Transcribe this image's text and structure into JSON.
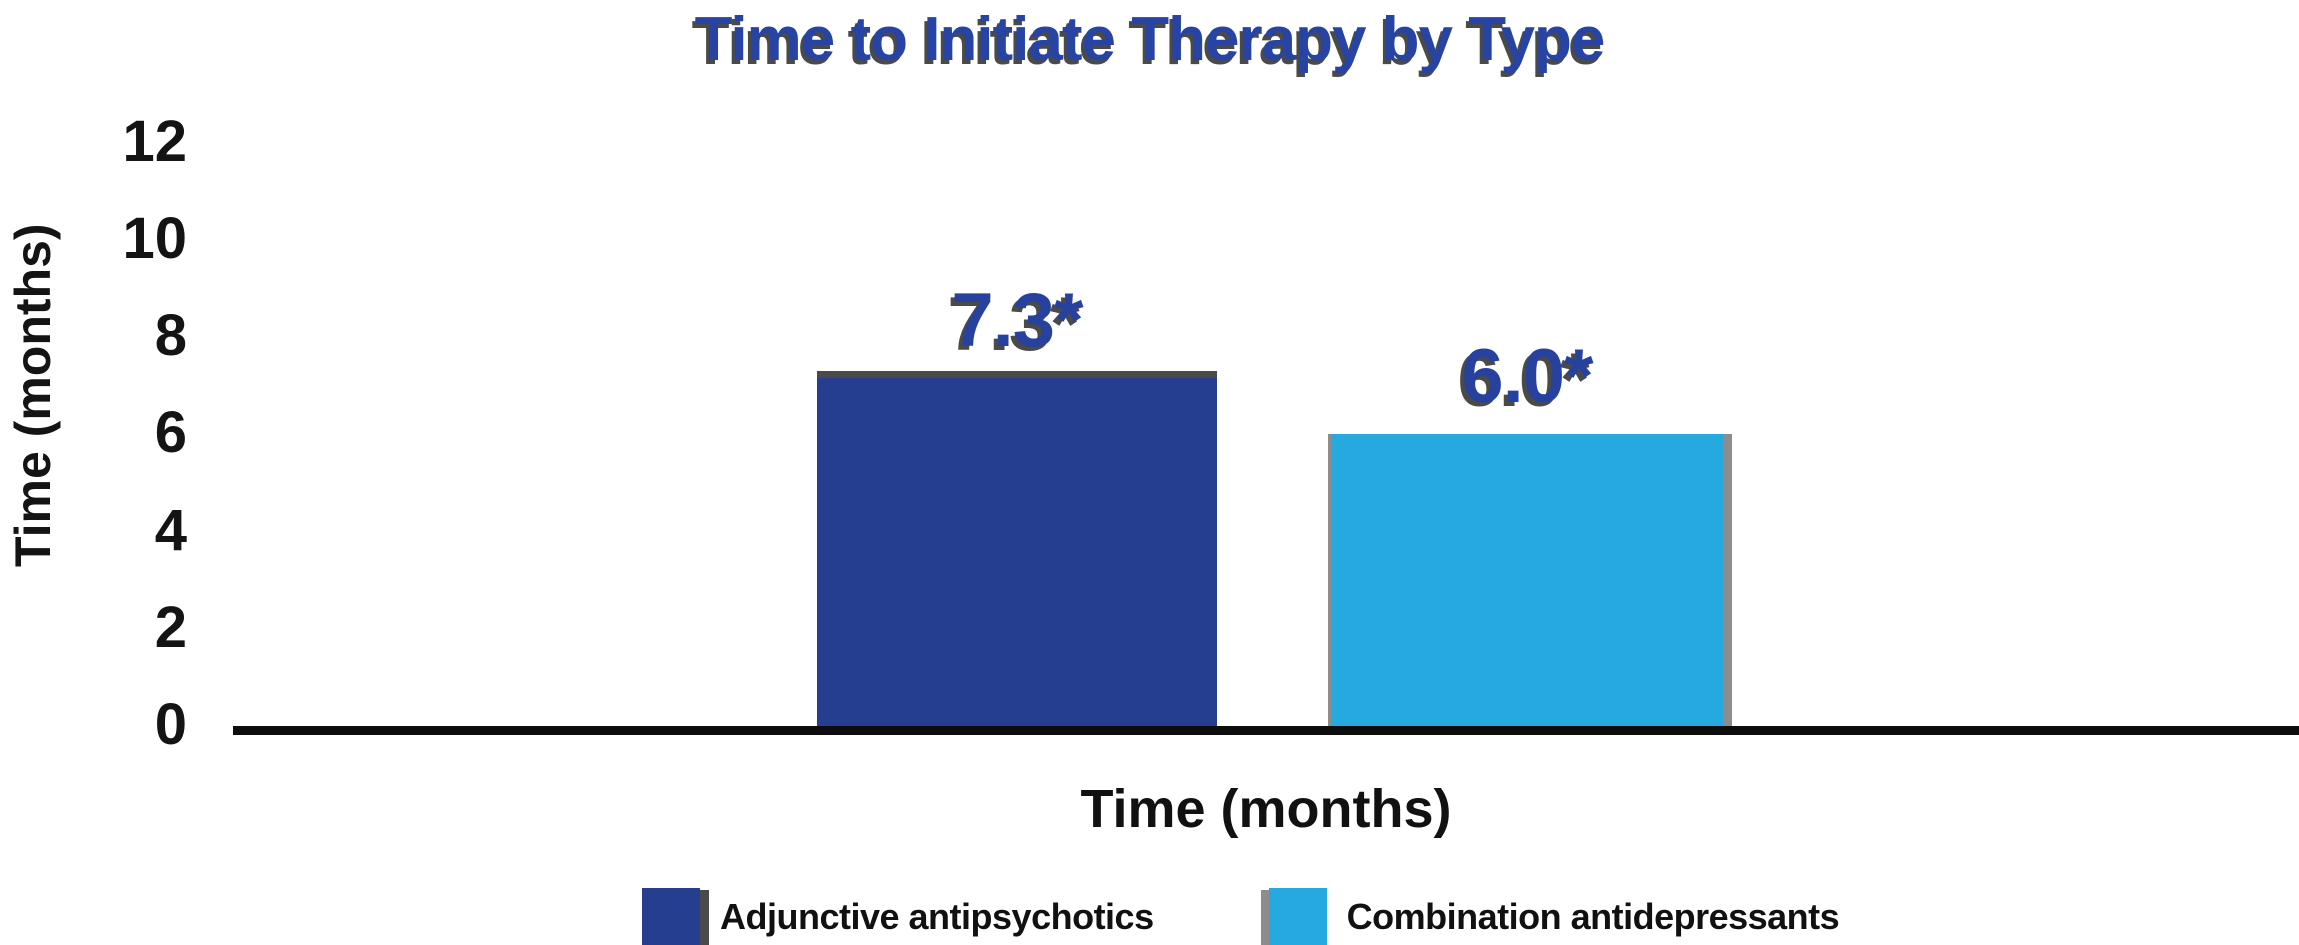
{
  "chart_data": {
    "type": "bar",
    "title": "Time to Initiate Therapy by Type",
    "xlabel": "Time (months)",
    "ylabel": "Time (months)",
    "ylim": [
      0,
      12
    ],
    "yticks": [
      0,
      2,
      4,
      6,
      8,
      10,
      12
    ],
    "grid": false,
    "legend_position": "bottom",
    "categories": [
      "Adjunctive antipsychotics",
      "Combination antidepressants"
    ],
    "series": [
      {
        "name": "Adjunctive antipsychotics",
        "value": 7.3,
        "data_label": "7.3*",
        "color": "#253e90"
      },
      {
        "name": "Combination antidepressants",
        "value": 6.0,
        "data_label": "6.0*",
        "color": "#25a9de"
      }
    ],
    "colors": {
      "title_text": "#2743a4",
      "data_label_text": "#27419f",
      "shadow": "#4a4a4a",
      "axis_line": "#0d0d0d",
      "tick_text": "#141414"
    }
  },
  "legend": {
    "items": [
      {
        "label": "Adjunctive antipsychotics",
        "color": "#253e90"
      },
      {
        "label": "Combination antidepressants",
        "color": "#25a9de"
      }
    ]
  }
}
